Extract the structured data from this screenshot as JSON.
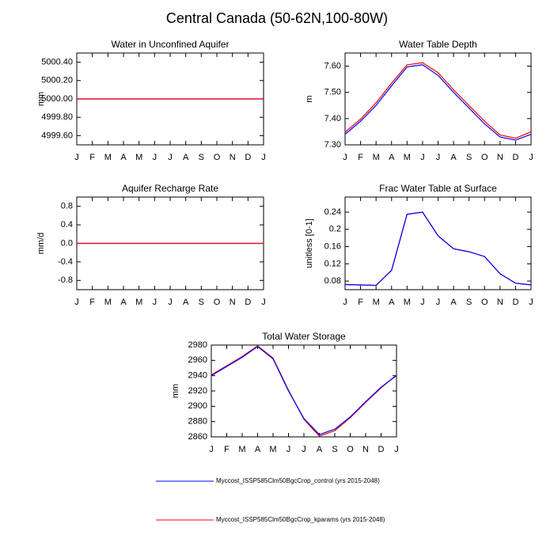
{
  "title": "Central Canada (50-62N,100-80W)",
  "chart_data": [
    {
      "type": "line",
      "title": "Water in Unconfined Aquifer",
      "ylabel": "mm",
      "categories": [
        "J",
        "F",
        "M",
        "A",
        "M",
        "J",
        "J",
        "A",
        "S",
        "O",
        "N",
        "D",
        "J"
      ],
      "ylim": [
        4999.5,
        5000.5
      ],
      "yticks": [
        {
          "value": 4999.6,
          "label": "4999.60"
        },
        {
          "value": 4999.8,
          "label": "4999.80"
        },
        {
          "value": 5000,
          "label": "5000.00"
        },
        {
          "value": 5000.2,
          "label": "5000.20"
        },
        {
          "value": 5000.4,
          "label": "5000.40"
        }
      ],
      "series": [
        {
          "name": "Myccost_ISSP585Clm50BgcCrop_control (yrs 2015-2048)",
          "color": "#0000ff",
          "values": [
            5000,
            5000,
            5000,
            5000,
            5000,
            5000,
            5000,
            5000,
            5000,
            5000,
            5000,
            5000,
            5000
          ]
        },
        {
          "name": "Myccost_ISSP585Clm50BgcCrop_kparams (yrs 2015-2048)",
          "color": "#ff0000",
          "values": [
            5000,
            5000,
            5000,
            5000,
            5000,
            5000,
            5000,
            5000,
            5000,
            5000,
            5000,
            5000,
            5000
          ]
        }
      ]
    },
    {
      "type": "line",
      "title": "Water Table Depth",
      "ylabel": "m",
      "categories": [
        "J",
        "F",
        "M",
        "A",
        "M",
        "J",
        "J",
        "A",
        "S",
        "O",
        "N",
        "D",
        "J"
      ],
      "ylim": [
        7.3,
        7.65
      ],
      "yticks": [
        {
          "value": 7.3,
          "label": "7.30"
        },
        {
          "value": 7.4,
          "label": "7.40"
        },
        {
          "value": 7.5,
          "label": "7.50"
        },
        {
          "value": 7.6,
          "label": "7.60"
        }
      ],
      "series": [
        {
          "name": "Myccost_ISSP585Clm50BgcCrop_control (yrs 2015-2048)",
          "color": "#0000ff",
          "values": [
            7.34,
            7.39,
            7.45,
            7.525,
            7.597,
            7.605,
            7.565,
            7.5,
            7.44,
            7.38,
            7.33,
            7.318,
            7.34
          ]
        },
        {
          "name": "Myccost_ISSP585Clm50BgcCrop_kparams (yrs 2015-2048)",
          "color": "#ff0000",
          "values": [
            7.348,
            7.398,
            7.46,
            7.535,
            7.605,
            7.613,
            7.575,
            7.51,
            7.45,
            7.39,
            7.338,
            7.325,
            7.35
          ]
        }
      ]
    },
    {
      "type": "line",
      "title": "Aquifer Recharge Rate",
      "ylabel": "mm/d",
      "categories": [
        "J",
        "F",
        "M",
        "A",
        "M",
        "J",
        "J",
        "A",
        "S",
        "O",
        "N",
        "D",
        "J"
      ],
      "ylim": [
        -1,
        1
      ],
      "yticks": [
        -0.8,
        -0.4,
        {
          "value": 0,
          "label": "0.0"
        },
        0.4,
        0.8
      ],
      "series": [
        {
          "name": "Myccost_ISSP585Clm50BgcCrop_control (yrs 2015-2048)",
          "color": "#0000ff",
          "values": [
            0,
            0,
            0,
            0,
            0,
            0,
            0,
            0,
            0,
            0,
            0,
            0,
            0
          ]
        },
        {
          "name": "Myccost_ISSP585Clm50BgcCrop_kparams (yrs 2015-2048)",
          "color": "#ff0000",
          "values": [
            0,
            0,
            0,
            0,
            0,
            0,
            0,
            0,
            0,
            0,
            0,
            0,
            0
          ]
        }
      ]
    },
    {
      "type": "line",
      "title": "Frac Water Table at Surface",
      "ylabel": "unitless [0-1]",
      "categories": [
        "J",
        "F",
        "M",
        "A",
        "M",
        "J",
        "J",
        "A",
        "S",
        "O",
        "N",
        "D",
        "J"
      ],
      "ylim": [
        0.06,
        0.275
      ],
      "yticks": [
        0.08,
        0.12,
        0.16,
        0.2,
        {
          "value": 0.24,
          "label": "0.24"
        }
      ],
      "series": [
        {
          "name": "Myccost_ISSP585Clm50BgcCrop_kparams (yrs 2015-2048)",
          "color": "#ff0000",
          "values": [
            0.072,
            0.071,
            0.07,
            0.105,
            0.235,
            0.24,
            0.185,
            0.155,
            0.148,
            0.137,
            0.097,
            0.075,
            0.071
          ]
        },
        {
          "name": "Myccost_ISSP585Clm50BgcCrop_control (yrs 2015-2048)",
          "color": "#0000ff",
          "values": [
            0.072,
            0.071,
            0.07,
            0.105,
            0.235,
            0.24,
            0.185,
            0.155,
            0.148,
            0.137,
            0.097,
            0.075,
            0.071
          ]
        }
      ]
    },
    {
      "type": "line",
      "title": "Total Water Storage",
      "ylabel": "mm",
      "categories": [
        "J",
        "F",
        "M",
        "A",
        "M",
        "J",
        "J",
        "A",
        "S",
        "O",
        "N",
        "D",
        "J"
      ],
      "ylim": [
        2860,
        2980
      ],
      "yticks": [
        2860,
        2880,
        2900,
        2920,
        2940,
        2960,
        2980
      ],
      "series": [
        {
          "name": "Myccost_ISSP585Clm50BgcCrop_kparams (yrs 2015-2048)",
          "color": "#ff0000",
          "values": [
            2941,
            2953,
            2965,
            2979,
            2963,
            2921,
            2883,
            2861,
            2868,
            2885,
            2905,
            2924,
            2941
          ]
        },
        {
          "name": "Myccost_ISSP585Clm50BgcCrop_control (yrs 2015-2048)",
          "color": "#0000ff",
          "values": [
            2940,
            2952,
            2964,
            2978,
            2962,
            2920,
            2884,
            2863,
            2870,
            2886,
            2906,
            2925,
            2940
          ]
        }
      ]
    }
  ]
}
